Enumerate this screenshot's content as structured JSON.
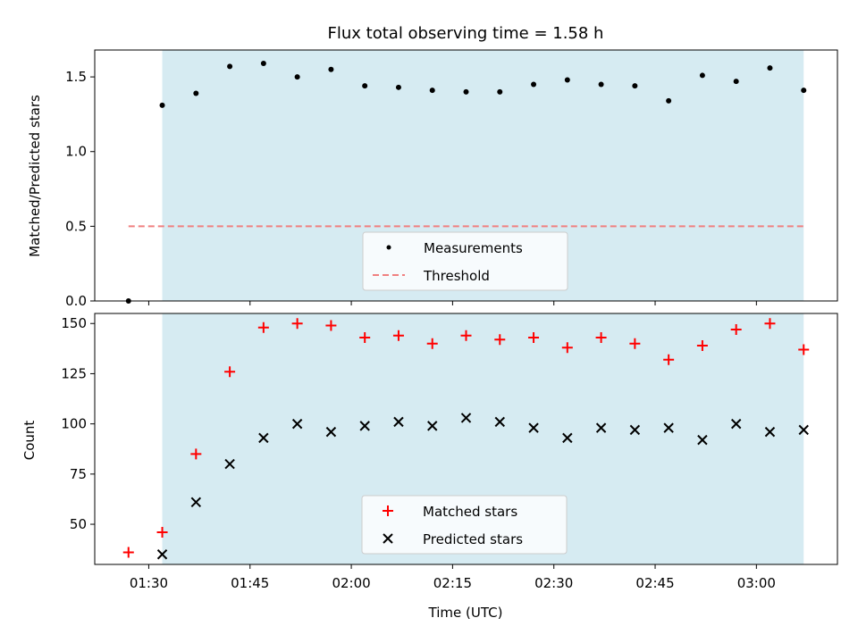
{
  "chart_data": [
    {
      "type": "scatter",
      "title": "Flux total observing time = 1.58 h",
      "xlabel": "",
      "ylabel": "Matched/Predicted stars",
      "xlim": [
        "01:22",
        "03:12"
      ],
      "ylim": [
        0,
        1.68
      ],
      "yticks": [
        "0.0",
        "0.5",
        "1.0",
        "1.5"
      ],
      "shaded_span": {
        "start": "01:32",
        "end": "03:07",
        "color": "#add8e6"
      },
      "series": [
        {
          "name": "Measurements",
          "marker": "dot",
          "color": "#000000",
          "x": [
            "01:27",
            "01:32",
            "01:37",
            "01:42",
            "01:47",
            "01:52",
            "01:57",
            "02:02",
            "02:07",
            "02:12",
            "02:17",
            "02:22",
            "02:27",
            "02:32",
            "02:37",
            "02:42",
            "02:47",
            "02:52",
            "02:57",
            "03:02",
            "03:07"
          ],
          "y": [
            0.0,
            1.31,
            1.39,
            1.57,
            1.59,
            1.5,
            1.55,
            1.44,
            1.43,
            1.41,
            1.4,
            1.4,
            1.45,
            1.48,
            1.45,
            1.44,
            1.34,
            1.51,
            1.47,
            1.56,
            1.41
          ]
        }
      ],
      "threshold": {
        "name": "Threshold",
        "value": 0.5,
        "start": "01:27",
        "end": "03:07",
        "color": "#f08080"
      },
      "legend": {
        "placement": "bottom-center",
        "items": [
          "Measurements",
          "Threshold"
        ]
      }
    },
    {
      "type": "scatter",
      "title": "",
      "xlabel": "Time (UTC)",
      "ylabel": "Count",
      "xlim": [
        "01:22",
        "03:12"
      ],
      "ylim": [
        30,
        155
      ],
      "yticks": [
        "50",
        "75",
        "100",
        "125",
        "150"
      ],
      "xticks": [
        "01:30",
        "01:45",
        "02:00",
        "02:15",
        "02:30",
        "02:45",
        "03:00"
      ],
      "shaded_span": {
        "start": "01:32",
        "end": "03:07",
        "color": "#add8e6"
      },
      "series": [
        {
          "name": "Matched stars",
          "marker": "plus",
          "color": "#ff0000",
          "x": [
            "01:27",
            "01:32",
            "01:37",
            "01:42",
            "01:47",
            "01:52",
            "01:57",
            "02:02",
            "02:07",
            "02:12",
            "02:17",
            "02:22",
            "02:27",
            "02:32",
            "02:37",
            "02:42",
            "02:47",
            "02:52",
            "02:57",
            "03:02",
            "03:07"
          ],
          "y": [
            36,
            46,
            85,
            126,
            148,
            150,
            149,
            143,
            144,
            140,
            144,
            142,
            143,
            138,
            143,
            140,
            132,
            139,
            147,
            150,
            137
          ]
        },
        {
          "name": "Predicted stars",
          "marker": "x",
          "color": "#000000",
          "x": [
            "01:32",
            "01:37",
            "01:42",
            "01:47",
            "01:52",
            "01:57",
            "02:02",
            "02:07",
            "02:12",
            "02:17",
            "02:22",
            "02:27",
            "02:32",
            "02:37",
            "02:42",
            "02:47",
            "02:52",
            "02:57",
            "03:02",
            "03:07"
          ],
          "y": [
            35,
            61,
            80,
            93,
            100,
            96,
            99,
            101,
            99,
            103,
            101,
            98,
            93,
            98,
            97,
            98,
            92,
            100,
            96,
            97
          ]
        }
      ],
      "legend": {
        "placement": "bottom-center",
        "items": [
          "Matched stars",
          "Predicted stars"
        ]
      }
    }
  ]
}
